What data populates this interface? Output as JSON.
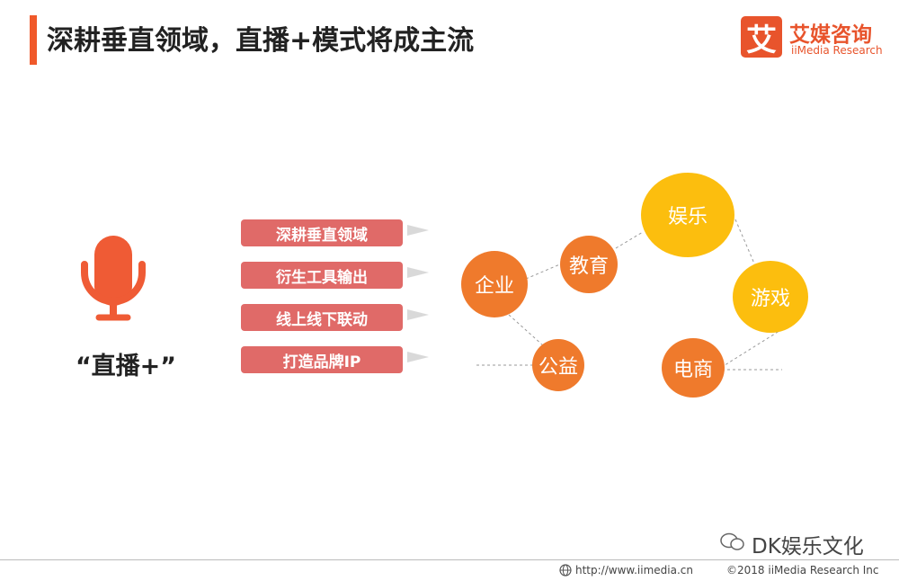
{
  "header": {
    "title": "深耕垂直领域，直播+模式将成主流"
  },
  "logo": {
    "glyph": "艾",
    "name_cn": "艾媒咨询",
    "name_en": "iiMedia Research"
  },
  "mic": {
    "label": "“直播+”"
  },
  "features": [
    {
      "label": "深耕垂直领域"
    },
    {
      "label": "衍生工具输出"
    },
    {
      "label": "线上线下联动"
    },
    {
      "label": "打造品牌IP"
    }
  ],
  "nodes": {
    "enterprise": "企业",
    "education": "教育",
    "entertainment": "娱乐",
    "gaming": "游戏",
    "charity": "公益",
    "ecommerce": "电商"
  },
  "footer": {
    "url": "http://www.iimedia.cn",
    "copyright": "©2018  iiMedia Research  Inc"
  },
  "watermark": {
    "text": "DK娱乐文化"
  },
  "colors": {
    "accent": "#f0592a",
    "node_orange": "#ef7a2c",
    "node_yellow": "#fcbe0e",
    "feature_bg": "#e06a68"
  }
}
